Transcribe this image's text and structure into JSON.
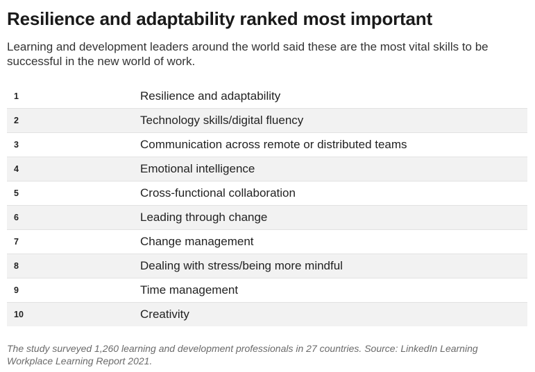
{
  "chart_data": {
    "type": "table",
    "title": "Resilience and adaptability ranked most important",
    "subtitle": "Learning and development leaders around the world said these are the most vital skills to be successful in the new world of work.",
    "columns": [
      "",
      ""
    ],
    "rows": [
      {
        "rank": "1",
        "skill": "Resilience and adaptability"
      },
      {
        "rank": "2",
        "skill": "Technology skills/digital fluency"
      },
      {
        "rank": "3",
        "skill": "Communication across remote or distributed teams"
      },
      {
        "rank": "4",
        "skill": "Emotional intelligence"
      },
      {
        "rank": "5",
        "skill": "Cross-functional collaboration"
      },
      {
        "rank": "6",
        "skill": "Leading through change"
      },
      {
        "rank": "7",
        "skill": "Change management"
      },
      {
        "rank": "8",
        "skill": "Dealing with stress/being more mindful"
      },
      {
        "rank": "9",
        "skill": "Time management"
      },
      {
        "rank": "10",
        "skill": "Creativity"
      }
    ],
    "footnote": "The study surveyed 1,260 learning and development professionals in 27 countries. Source: LinkedIn Learning Workplace Learning Report 2021.",
    "row_band_color": "#f2f2f2",
    "text_color": "#222222",
    "footnote_color": "#6a6a6a"
  }
}
